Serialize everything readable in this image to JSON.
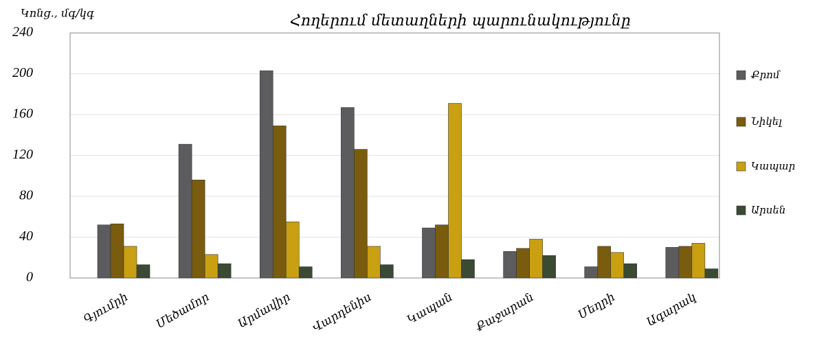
{
  "chart_data": {
    "type": "bar",
    "title": "Հողերում մետաղների պարունակությունը",
    "y_label": "Կոնց., մգ/կգ",
    "categories": [
      "Գյումրի",
      "Մեծամոր",
      "Արմավիր",
      "Վարդենիս",
      "Կապան",
      "Քաջարան",
      "Մեղրի",
      "Ագարակ"
    ],
    "series": [
      {
        "name": "Քրոմ",
        "color": "#5c5c5e",
        "values": [
          52,
          131,
          203,
          167,
          49,
          26,
          11,
          30
        ]
      },
      {
        "name": "Նիկել",
        "color": "#7a5c0e",
        "values": [
          53,
          96,
          149,
          126,
          52,
          29,
          31,
          31
        ]
      },
      {
        "name": "Կապար",
        "color": "#c9a012",
        "values": [
          31,
          23,
          55,
          31,
          171,
          38,
          25,
          34
        ]
      },
      {
        "name": "Արսեն",
        "color": "#3b4a33",
        "values": [
          13,
          14,
          11,
          13,
          18,
          22,
          14,
          9
        ]
      }
    ],
    "ylim": [
      0,
      240
    ],
    "yticks": [
      0,
      40,
      80,
      120,
      160,
      200,
      240
    ],
    "grid": true,
    "legend": "right"
  }
}
